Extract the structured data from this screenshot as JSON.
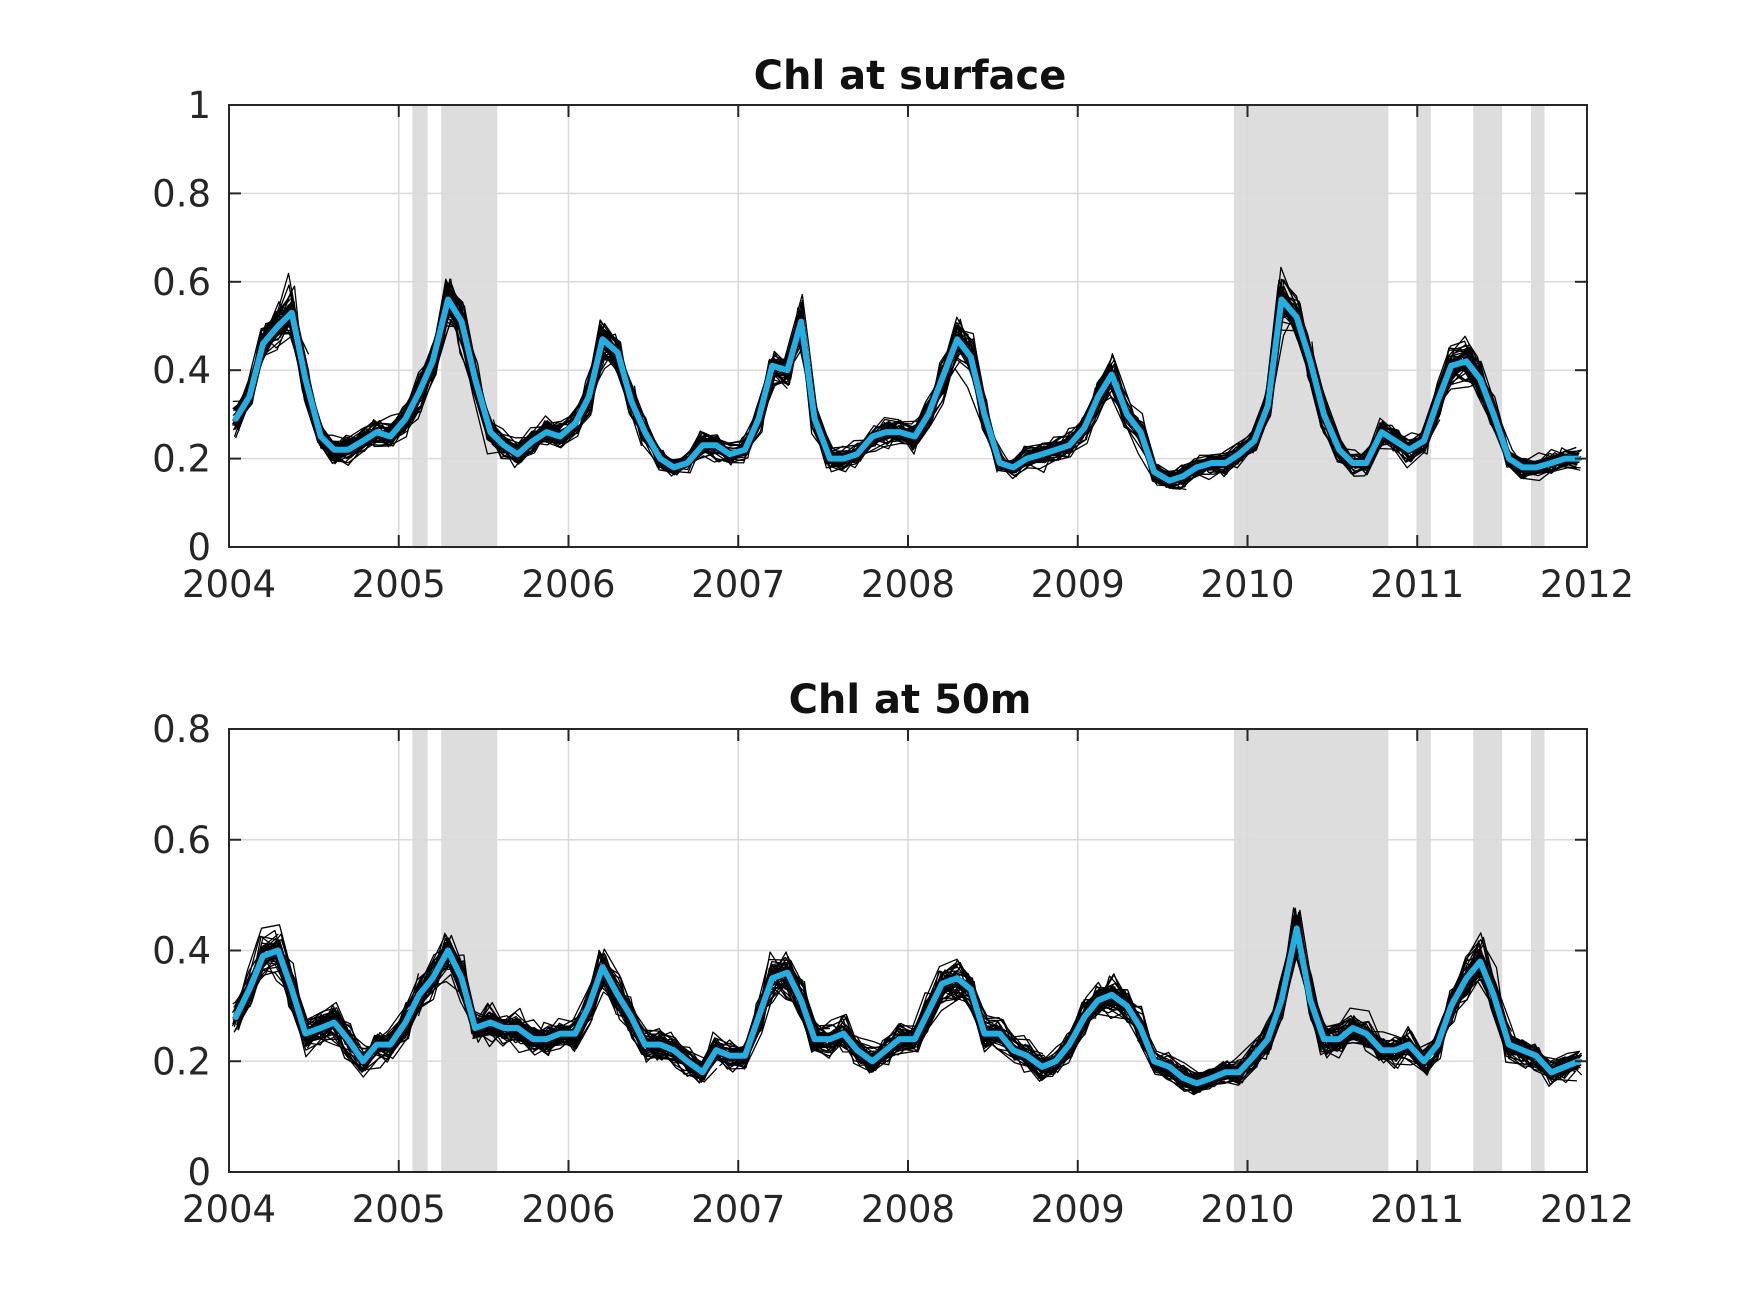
{
  "colors": {
    "mean_line": "#1fb0e6",
    "ensemble": "#000000",
    "shading": "#dddddd",
    "grid": "#dadada"
  },
  "chart_data": [
    {
      "type": "line",
      "title": "Chl at surface",
      "xlim": [
        2004,
        2012
      ],
      "ylim": [
        0,
        1
      ],
      "x_ticks": [
        "2004",
        "2005",
        "2006",
        "2007",
        "2008",
        "2009",
        "2010",
        "2011",
        "2012"
      ],
      "y_ticks": [
        "0",
        "0.2",
        "0.4",
        "0.6",
        "0.8",
        "1"
      ],
      "grid": true,
      "shaded_periods": [
        [
          2005.08,
          2005.17
        ],
        [
          2005.25,
          2005.58
        ],
        [
          2009.92,
          2010.58
        ],
        [
          2010.58,
          2010.83
        ],
        [
          2011.0,
          2011.08
        ],
        [
          2011.33,
          2011.5
        ],
        [
          2011.67,
          2011.75
        ]
      ],
      "mean_series": {
        "x": [
          2004.04,
          2004.12,
          2004.2,
          2004.29,
          2004.37,
          2004.45,
          2004.54,
          2004.62,
          2004.7,
          2004.79,
          2004.87,
          2004.95,
          2005.04,
          2005.12,
          2005.2,
          2005.29,
          2005.37,
          2005.45,
          2005.54,
          2005.62,
          2005.7,
          2005.79,
          2005.87,
          2005.95,
          2006.04,
          2006.12,
          2006.2,
          2006.29,
          2006.37,
          2006.45,
          2006.54,
          2006.62,
          2006.7,
          2006.79,
          2006.87,
          2006.95,
          2007.04,
          2007.12,
          2007.2,
          2007.29,
          2007.37,
          2007.45,
          2007.54,
          2007.62,
          2007.7,
          2007.79,
          2007.87,
          2007.95,
          2008.04,
          2008.12,
          2008.2,
          2008.29,
          2008.37,
          2008.45,
          2008.54,
          2008.62,
          2008.7,
          2008.79,
          2008.87,
          2008.95,
          2009.04,
          2009.12,
          2009.2,
          2009.29,
          2009.37,
          2009.45,
          2009.54,
          2009.62,
          2009.7,
          2009.79,
          2009.87,
          2009.95,
          2010.04,
          2010.12,
          2010.2,
          2010.29,
          2010.37,
          2010.45,
          2010.54,
          2010.62,
          2010.7,
          2010.79,
          2010.87,
          2010.95,
          2011.04,
          2011.12,
          2011.2,
          2011.29,
          2011.37,
          2011.45,
          2011.54,
          2011.62,
          2011.7,
          2011.79,
          2011.87,
          2011.95
        ],
        "y": [
          0.29,
          0.34,
          0.46,
          0.5,
          0.53,
          0.38,
          0.25,
          0.22,
          0.22,
          0.24,
          0.26,
          0.25,
          0.29,
          0.35,
          0.42,
          0.56,
          0.51,
          0.38,
          0.26,
          0.23,
          0.21,
          0.24,
          0.26,
          0.25,
          0.28,
          0.34,
          0.47,
          0.44,
          0.33,
          0.26,
          0.2,
          0.18,
          0.19,
          0.23,
          0.23,
          0.21,
          0.22,
          0.29,
          0.41,
          0.4,
          0.51,
          0.29,
          0.2,
          0.2,
          0.21,
          0.25,
          0.26,
          0.26,
          0.25,
          0.3,
          0.38,
          0.47,
          0.43,
          0.3,
          0.19,
          0.18,
          0.2,
          0.21,
          0.22,
          0.23,
          0.27,
          0.34,
          0.39,
          0.3,
          0.26,
          0.17,
          0.15,
          0.16,
          0.18,
          0.19,
          0.19,
          0.21,
          0.24,
          0.32,
          0.56,
          0.52,
          0.42,
          0.3,
          0.22,
          0.19,
          0.19,
          0.26,
          0.24,
          0.22,
          0.24,
          0.33,
          0.41,
          0.42,
          0.38,
          0.3,
          0.2,
          0.18,
          0.18,
          0.19,
          0.2,
          0.2
        ]
      }
    },
    {
      "type": "line",
      "title": "Chl at 50m",
      "xlim": [
        2004,
        2012
      ],
      "ylim": [
        0,
        0.8
      ],
      "x_ticks": [
        "2004",
        "2005",
        "2006",
        "2007",
        "2008",
        "2009",
        "2010",
        "2011",
        "2012"
      ],
      "y_ticks": [
        "0",
        "0.2",
        "0.4",
        "0.6",
        "0.8"
      ],
      "grid": true,
      "shaded_periods": [
        [
          2005.08,
          2005.17
        ],
        [
          2005.25,
          2005.58
        ],
        [
          2009.92,
          2010.58
        ],
        [
          2010.58,
          2010.83
        ],
        [
          2011.0,
          2011.08
        ],
        [
          2011.33,
          2011.5
        ],
        [
          2011.67,
          2011.75
        ]
      ],
      "mean_series": {
        "x": [
          2004.04,
          2004.12,
          2004.2,
          2004.29,
          2004.37,
          2004.45,
          2004.54,
          2004.62,
          2004.7,
          2004.79,
          2004.87,
          2004.95,
          2005.04,
          2005.12,
          2005.2,
          2005.29,
          2005.37,
          2005.45,
          2005.54,
          2005.62,
          2005.7,
          2005.79,
          2005.87,
          2005.95,
          2006.04,
          2006.12,
          2006.2,
          2006.29,
          2006.37,
          2006.45,
          2006.54,
          2006.62,
          2006.7,
          2006.79,
          2006.87,
          2006.95,
          2007.04,
          2007.12,
          2007.2,
          2007.29,
          2007.37,
          2007.45,
          2007.54,
          2007.62,
          2007.7,
          2007.79,
          2007.87,
          2007.95,
          2008.04,
          2008.12,
          2008.2,
          2008.29,
          2008.37,
          2008.45,
          2008.54,
          2008.62,
          2008.7,
          2008.79,
          2008.87,
          2008.95,
          2009.04,
          2009.12,
          2009.2,
          2009.29,
          2009.37,
          2009.45,
          2009.54,
          2009.62,
          2009.7,
          2009.79,
          2009.87,
          2009.95,
          2010.04,
          2010.12,
          2010.2,
          2010.29,
          2010.37,
          2010.45,
          2010.54,
          2010.62,
          2010.7,
          2010.79,
          2010.87,
          2010.95,
          2011.04,
          2011.12,
          2011.2,
          2011.29,
          2011.37,
          2011.45,
          2011.54,
          2011.62,
          2011.7,
          2011.79,
          2011.87,
          2011.95
        ],
        "y": [
          0.28,
          0.33,
          0.39,
          0.4,
          0.33,
          0.25,
          0.26,
          0.27,
          0.24,
          0.2,
          0.23,
          0.23,
          0.27,
          0.32,
          0.35,
          0.4,
          0.35,
          0.26,
          0.27,
          0.26,
          0.26,
          0.24,
          0.24,
          0.25,
          0.25,
          0.3,
          0.37,
          0.32,
          0.28,
          0.23,
          0.23,
          0.22,
          0.2,
          0.18,
          0.22,
          0.21,
          0.21,
          0.28,
          0.35,
          0.36,
          0.31,
          0.24,
          0.24,
          0.25,
          0.22,
          0.2,
          0.22,
          0.24,
          0.24,
          0.29,
          0.34,
          0.35,
          0.33,
          0.25,
          0.25,
          0.22,
          0.21,
          0.19,
          0.2,
          0.23,
          0.28,
          0.31,
          0.32,
          0.3,
          0.26,
          0.2,
          0.19,
          0.17,
          0.16,
          0.17,
          0.18,
          0.18,
          0.21,
          0.24,
          0.31,
          0.44,
          0.31,
          0.24,
          0.24,
          0.26,
          0.25,
          0.22,
          0.22,
          0.23,
          0.2,
          0.23,
          0.3,
          0.35,
          0.38,
          0.32,
          0.23,
          0.22,
          0.21,
          0.18,
          0.19,
          0.2
        ]
      }
    }
  ]
}
